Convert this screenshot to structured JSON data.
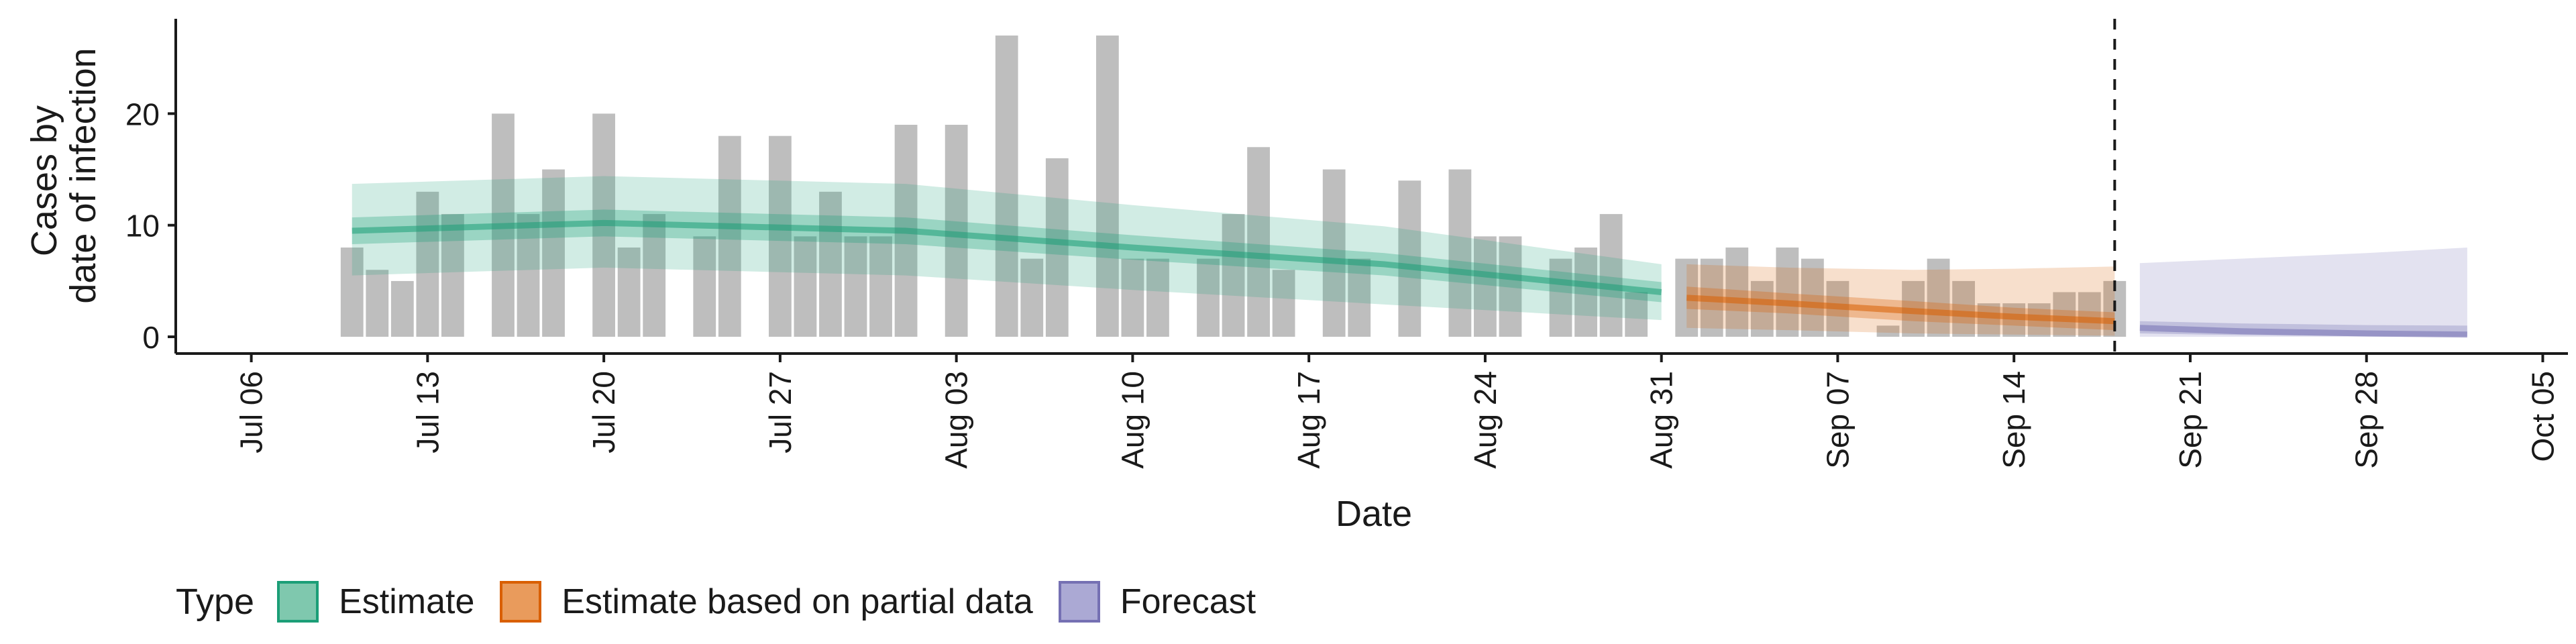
{
  "chart_data": {
    "type": "bar",
    "ylabel_lines": [
      "Cases by",
      "date of infection"
    ],
    "xlabel": "Date",
    "ylim": [
      -1.5,
      28.5
    ],
    "yticks": [
      0,
      10,
      20
    ],
    "xlim": [
      "2020-07-03",
      "2020-10-06"
    ],
    "xticks": [
      {
        "date": "2020-07-06",
        "label": "Jul 06"
      },
      {
        "date": "2020-07-13",
        "label": "Jul 13"
      },
      {
        "date": "2020-07-20",
        "label": "Jul 20"
      },
      {
        "date": "2020-07-27",
        "label": "Jul 27"
      },
      {
        "date": "2020-08-03",
        "label": "Aug 03"
      },
      {
        "date": "2020-08-10",
        "label": "Aug 10"
      },
      {
        "date": "2020-08-17",
        "label": "Aug 17"
      },
      {
        "date": "2020-08-24",
        "label": "Aug 24"
      },
      {
        "date": "2020-08-31",
        "label": "Aug 31"
      },
      {
        "date": "2020-09-07",
        "label": "Sep 07"
      },
      {
        "date": "2020-09-14",
        "label": "Sep 14"
      },
      {
        "date": "2020-09-21",
        "label": "Sep 21"
      },
      {
        "date": "2020-09-28",
        "label": "Sep 28"
      },
      {
        "date": "2020-10-05",
        "label": "Oct 05"
      }
    ],
    "forecast_start_line": "2020-09-18",
    "reported_cases": {
      "start_date": "2020-07-10",
      "values": [
        8,
        6,
        5,
        13,
        11,
        0,
        20,
        11,
        15,
        0,
        20,
        8,
        11,
        0,
        9,
        18,
        0,
        18,
        9,
        13,
        9,
        9,
        19,
        0,
        19,
        0,
        27,
        7,
        16,
        0,
        27,
        7,
        7,
        0,
        7,
        11,
        17,
        6,
        0,
        15,
        7,
        0,
        14,
        0,
        15,
        9,
        9,
        0,
        7,
        8,
        11,
        4,
        0,
        7,
        7,
        8,
        5,
        8,
        7,
        5,
        0,
        1,
        5,
        7,
        5,
        3,
        3,
        3,
        4,
        4,
        5
      ]
    },
    "series": [
      {
        "name": "Estimate",
        "color": "#1B9E77",
        "x": [
          "2020-07-10",
          "2020-07-20",
          "2020-08-01",
          "2020-08-10",
          "2020-08-20",
          "2020-08-31"
        ],
        "median": [
          9.5,
          10.2,
          9.5,
          8.0,
          6.5,
          4.0
        ],
        "lower_50": [
          8.3,
          9.0,
          8.3,
          6.9,
          5.5,
          3.1
        ],
        "upper_50": [
          10.7,
          11.4,
          10.7,
          9.1,
          7.5,
          4.9
        ],
        "lower_90": [
          5.5,
          6.2,
          5.5,
          4.2,
          2.9,
          1.5
        ],
        "upper_90": [
          13.7,
          14.4,
          13.7,
          11.8,
          9.9,
          6.5
        ]
      },
      {
        "name": "Estimate based on partial data",
        "color": "#D95F02",
        "x": [
          "2020-09-01",
          "2020-09-05",
          "2020-09-10",
          "2020-09-14",
          "2020-09-18"
        ],
        "median": [
          3.5,
          3.0,
          2.3,
          1.8,
          1.4
        ],
        "lower_50": [
          2.5,
          2.1,
          1.4,
          1.0,
          0.6
        ],
        "upper_50": [
          4.5,
          3.9,
          3.2,
          2.6,
          2.2
        ],
        "lower_90": [
          0.8,
          0.6,
          0.3,
          0.2,
          0.1
        ],
        "upper_90": [
          6.5,
          6.2,
          6.0,
          6.1,
          6.3
        ]
      },
      {
        "name": "Forecast",
        "color": "#7570B3",
        "x": [
          "2020-09-19",
          "2020-09-23",
          "2020-09-28",
          "2020-10-02"
        ],
        "median": [
          0.8,
          0.5,
          0.3,
          0.2
        ],
        "lower_50": [
          0.3,
          0.15,
          0.05,
          0.02
        ],
        "upper_50": [
          1.4,
          1.2,
          1.05,
          1.0
        ],
        "lower_90": [
          0.0,
          0.0,
          0.0,
          0.0
        ],
        "upper_90": [
          6.6,
          7.0,
          7.5,
          8.0
        ]
      }
    ],
    "legend": {
      "title": "Type",
      "position": "bottom",
      "items": [
        {
          "label": "Estimate",
          "fill": "#7FC8AE",
          "border": "#1B9E77"
        },
        {
          "label": "Estimate based on partial data",
          "fill": "#E99B5C",
          "border": "#D95F02"
        },
        {
          "label": "Forecast",
          "fill": "#ABA9D4",
          "border": "#7570B3"
        }
      ]
    }
  }
}
